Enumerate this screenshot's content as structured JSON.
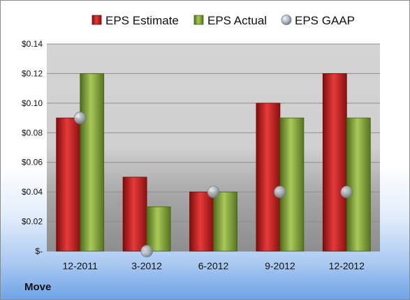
{
  "company": "Move",
  "chart_data": {
    "type": "bar",
    "categories": [
      "12-2011",
      "3-2012",
      "6-2012",
      "9-2012",
      "12-2012"
    ],
    "series": [
      {
        "name": "EPS Estimate",
        "kind": "bar",
        "color": "#cc1f1f",
        "values": [
          0.09,
          0.05,
          0.04,
          0.1,
          0.12
        ]
      },
      {
        "name": "EPS Actual",
        "kind": "bar",
        "color": "#8fb03a",
        "values": [
          0.12,
          0.03,
          0.04,
          0.09,
          0.09
        ]
      },
      {
        "name": "EPS GAAP",
        "kind": "marker",
        "color": "#9aa6b4",
        "values": [
          0.09,
          0.0,
          0.04,
          0.04,
          0.04
        ]
      }
    ],
    "yticks": [
      0,
      0.02,
      0.04,
      0.06,
      0.08,
      0.1,
      0.12,
      0.14
    ],
    "ytick_labels": [
      "$-",
      "$0.02",
      "$0.04",
      "$0.06",
      "$0.08",
      "$0.10",
      "$0.12",
      "$0.14"
    ],
    "ylim": [
      0,
      0.14
    ],
    "grid": true,
    "legend_position": "top"
  }
}
